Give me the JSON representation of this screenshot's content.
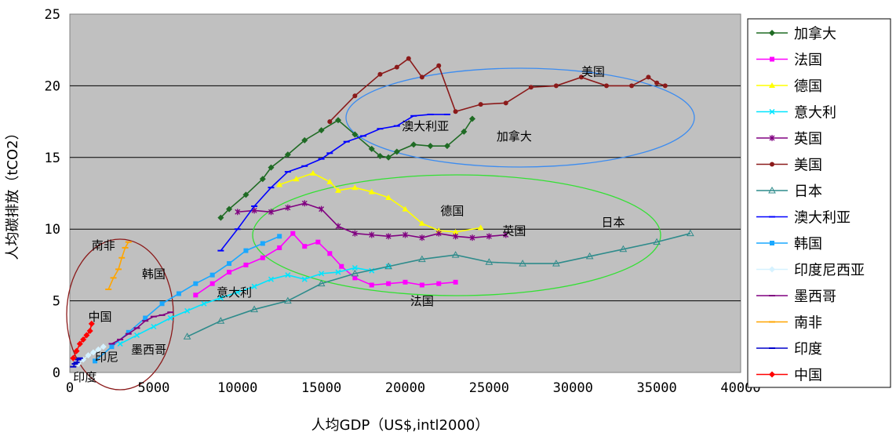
{
  "chart_data": {
    "type": "line",
    "xlabel": "人均GDP（US$,intl2000）",
    "ylabel": "人均碳排放（tCO2）",
    "xlim": [
      0,
      40000
    ],
    "ylim": [
      0,
      25
    ],
    "xticks": [
      0,
      5000,
      10000,
      15000,
      20000,
      25000,
      30000,
      35000,
      40000
    ],
    "yticks": [
      0,
      5,
      10,
      15,
      20,
      25
    ],
    "grid": "horizontal",
    "legend_position": "right",
    "colors": {
      "plot_bg": "#c0c0c0",
      "gridline": "#000000",
      "ellipse_blue": "#3c8cf0",
      "ellipse_green": "#33e033",
      "ellipse_brown": "#8b1a1a"
    },
    "series": [
      {
        "name": "加拿大",
        "color": "#1f6b24",
        "marker": "diamond",
        "x": [
          9000,
          9500,
          10500,
          11500,
          12000,
          13000,
          14000,
          15000,
          16000,
          17000,
          18000,
          18500,
          19000,
          19500,
          20500,
          21500,
          22500,
          23500,
          24000
        ],
        "y": [
          10.8,
          11.4,
          12.4,
          13.5,
          14.3,
          15.2,
          16.2,
          16.9,
          17.6,
          16.6,
          15.6,
          15.1,
          15.0,
          15.4,
          15.9,
          15.8,
          15.8,
          16.8,
          17.7
        ]
      },
      {
        "name": "法国",
        "color": "#ff00ff",
        "marker": "square",
        "x": [
          7500,
          8500,
          9500,
          10500,
          11500,
          12500,
          13300,
          14000,
          14800,
          15500,
          16200,
          17000,
          18000,
          19000,
          20000,
          21000,
          22000,
          23000
        ],
        "y": [
          5.4,
          6.2,
          7.0,
          7.5,
          8.0,
          8.7,
          9.7,
          8.8,
          9.1,
          8.3,
          7.4,
          6.6,
          6.1,
          6.2,
          6.3,
          6.1,
          6.2,
          6.3
        ]
      },
      {
        "name": "德国",
        "color": "#ffff00",
        "marker": "triangle",
        "x": [
          12500,
          13500,
          14500,
          15500,
          16000,
          17000,
          18000,
          19000,
          20000,
          21000,
          22000,
          23000,
          24500
        ],
        "y": [
          13.1,
          13.5,
          13.9,
          13.3,
          12.7,
          12.9,
          12.6,
          12.2,
          11.4,
          10.4,
          9.9,
          9.8,
          10.1
        ]
      },
      {
        "name": "意大利",
        "color": "#00e5ff",
        "marker": "x",
        "x": [
          3000,
          4000,
          5000,
          6000,
          7000,
          8000,
          9000,
          10000,
          11000,
          12000,
          13000,
          14000,
          15000,
          16000,
          17000,
          18000,
          19000
        ],
        "y": [
          2.0,
          2.6,
          3.2,
          3.8,
          4.3,
          4.8,
          5.2,
          5.6,
          6.0,
          6.5,
          6.8,
          6.5,
          6.9,
          7.0,
          7.3,
          7.1,
          7.4
        ]
      },
      {
        "name": "英国",
        "color": "#800080",
        "marker": "star",
        "x": [
          10000,
          11000,
          12000,
          13000,
          14000,
          15000,
          16000,
          17000,
          18000,
          19000,
          20000,
          21000,
          22000,
          23000,
          24000,
          25000,
          26000
        ],
        "y": [
          11.2,
          11.3,
          11.2,
          11.5,
          11.8,
          11.4,
          10.2,
          9.7,
          9.6,
          9.5,
          9.6,
          9.4,
          9.7,
          9.5,
          9.4,
          9.5,
          9.6
        ]
      },
      {
        "name": "美国",
        "color": "#8b1a1a",
        "marker": "circle",
        "x": [
          15500,
          17000,
          18500,
          19500,
          20200,
          21000,
          22000,
          23000,
          24500,
          26000,
          27500,
          29000,
          30500,
          32000,
          33500,
          34500,
          35000,
          35500
        ],
        "y": [
          17.5,
          19.3,
          20.8,
          21.3,
          21.9,
          20.6,
          21.4,
          18.2,
          18.7,
          18.8,
          19.9,
          20.0,
          20.6,
          20.0,
          20.0,
          20.6,
          20.2,
          20.0
        ]
      },
      {
        "name": "日本",
        "color": "#2e8b8b",
        "marker": "triangle-open",
        "x": [
          7000,
          9000,
          11000,
          13000,
          15000,
          17000,
          19000,
          21000,
          23000,
          25000,
          27000,
          29000,
          31000,
          33000,
          35000,
          37000
        ],
        "y": [
          2.5,
          3.6,
          4.4,
          5.0,
          6.2,
          6.9,
          7.4,
          7.9,
          8.2,
          7.7,
          7.6,
          7.6,
          8.1,
          8.6,
          9.1,
          9.7
        ]
      },
      {
        "name": "澳大利亚",
        "color": "#0000ff",
        "marker": "dash",
        "x": [
          9000,
          10000,
          11000,
          12000,
          13000,
          14000,
          15000,
          15500,
          16500,
          17500,
          18500,
          19500,
          20500,
          21500,
          22500
        ],
        "y": [
          8.5,
          10.0,
          11.6,
          12.9,
          14.0,
          14.4,
          14.9,
          15.3,
          16.1,
          16.5,
          17.0,
          17.2,
          17.9,
          18.0,
          18.0
        ]
      },
      {
        "name": "韩国",
        "color": "#1aa8ff",
        "marker": "square",
        "x": [
          1500,
          2500,
          3500,
          4500,
          5500,
          6500,
          7500,
          8500,
          9500,
          10500,
          11500,
          12500
        ],
        "y": [
          0.8,
          1.8,
          2.8,
          3.8,
          4.8,
          5.5,
          6.2,
          6.8,
          7.6,
          8.5,
          9.0,
          9.5
        ]
      },
      {
        "name": "印度尼西亚",
        "color": "#d6f2ff",
        "marker": "diamond",
        "x": [
          500,
          800,
          1100,
          1400,
          1700,
          2000
        ],
        "y": [
          0.6,
          0.9,
          1.2,
          1.4,
          1.6,
          1.8
        ]
      },
      {
        "name": "墨西哥",
        "color": "#800080",
        "marker": "dash",
        "x": [
          2500,
          3000,
          3500,
          4000,
          4500,
          5000,
          5500,
          6000
        ],
        "y": [
          2.0,
          2.3,
          2.7,
          3.1,
          3.6,
          3.9,
          4.0,
          4.2
        ]
      },
      {
        "name": "南非",
        "color": "#ffa500",
        "marker": "dash",
        "x": [
          2300,
          2600,
          2900,
          3100,
          3300,
          3500
        ],
        "y": [
          5.8,
          6.6,
          7.2,
          8.0,
          8.7,
          9.1
        ]
      },
      {
        "name": "印度",
        "color": "#0000cc",
        "marker": "dash",
        "x": [
          200,
          300,
          400,
          500,
          600
        ],
        "y": [
          0.4,
          0.6,
          0.7,
          0.9,
          1.0
        ]
      },
      {
        "name": "中国",
        "color": "#ff0000",
        "marker": "diamond",
        "x": [
          200,
          400,
          600,
          800,
          1000,
          1200,
          1300
        ],
        "y": [
          1.0,
          1.5,
          2.0,
          2.3,
          2.6,
          2.9,
          3.4
        ]
      }
    ],
    "annotations": [
      {
        "text": "美国",
        "x": 31200,
        "y": 20.7
      },
      {
        "text": "澳大利亚",
        "x": 21200,
        "y": 16.9
      },
      {
        "text": "加拿大",
        "x": 26500,
        "y": 16.2
      },
      {
        "text": "德国",
        "x": 22800,
        "y": 11.0
      },
      {
        "text": "英国",
        "x": 26500,
        "y": 9.6
      },
      {
        "text": "日本",
        "x": 32400,
        "y": 10.2
      },
      {
        "text": "法国",
        "x": 21000,
        "y": 4.7
      },
      {
        "text": "意大利",
        "x": 9800,
        "y": 5.3
      },
      {
        "text": "韩国",
        "x": 5000,
        "y": 6.6
      },
      {
        "text": "南非",
        "x": 2000,
        "y": 8.6
      },
      {
        "text": "中国",
        "x": 1800,
        "y": 3.6
      },
      {
        "text": "墨西哥",
        "x": 4700,
        "y": 1.3
      },
      {
        "text": "印尼",
        "x": 2200,
        "y": 0.8
      },
      {
        "text": "印度",
        "x": 900,
        "y": -0.6
      }
    ]
  }
}
